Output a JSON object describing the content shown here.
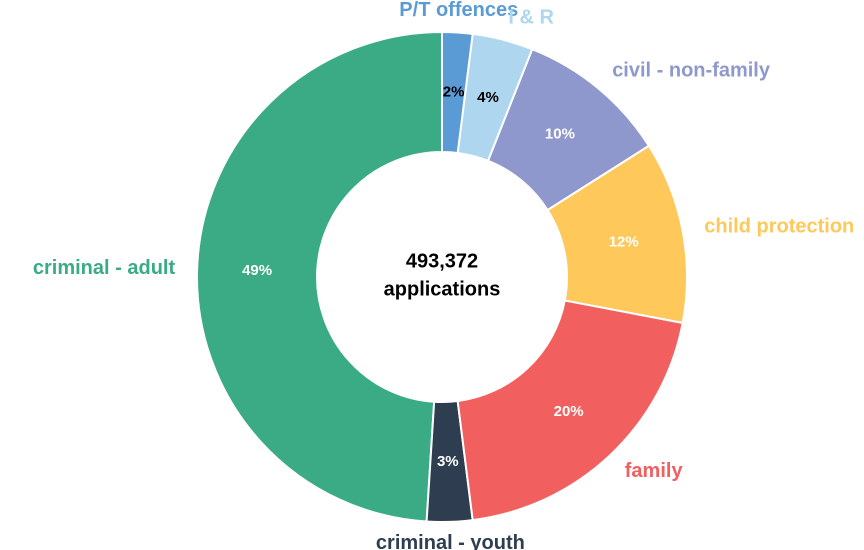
{
  "chart_data": {
    "type": "donut",
    "categories": [
      "P/T offences",
      "I & R",
      "civil - non-family",
      "child protection",
      "family",
      "criminal - youth",
      "criminal - adult"
    ],
    "values": [
      2,
      4,
      10,
      12,
      20,
      3,
      49
    ],
    "value_labels": [
      "2%",
      "4%",
      "10%",
      "12%",
      "20%",
      "3%",
      "49%"
    ],
    "colors": [
      "#5b9bd5",
      "#aed6ee",
      "#8e98cc",
      "#fec85a",
      "#f25f5f",
      "#2e3e50",
      "#3aab85"
    ],
    "value_label_colors": [
      "#000000",
      "#000000",
      "#ffffff",
      "#ffffff",
      "#ffffff",
      "#ffffff",
      "#ffffff"
    ],
    "center_text": [
      "493,372",
      "applications"
    ]
  }
}
